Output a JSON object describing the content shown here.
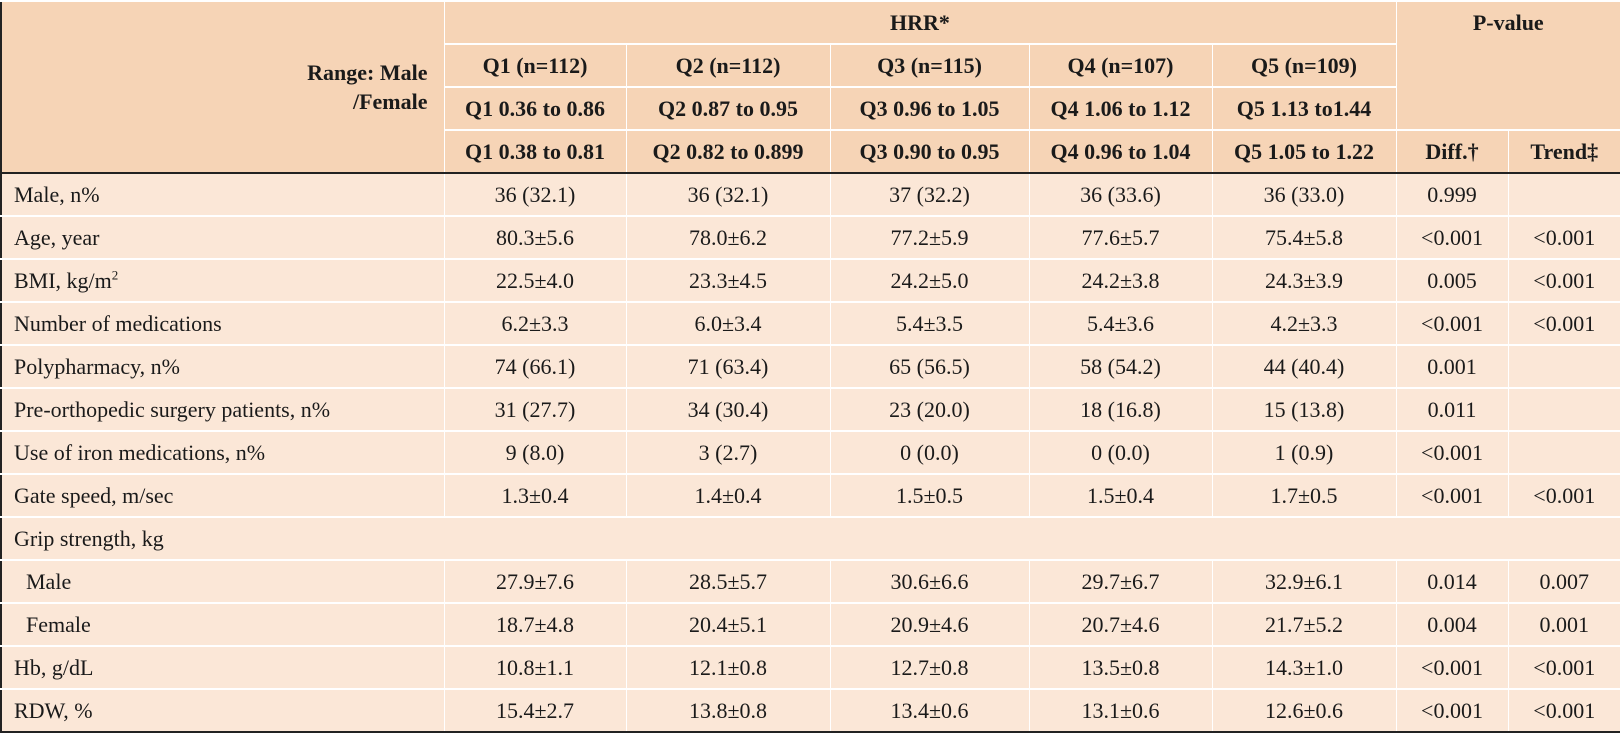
{
  "header": {
    "stub_label": "Range: Male /Female",
    "stub_line1": "Range: Male",
    "stub_line2": "/Female",
    "group_title": "HRR*",
    "pvalue_title": "P-value",
    "quintile_counts": [
      "Q1 (n=112)",
      "Q2 (n=112)",
      "Q3 (n=115)",
      "Q4 (n=107)",
      "Q5 (n=109)"
    ],
    "male_ranges": [
      "Q1 0.36 to 0.86",
      "Q2 0.87 to 0.95",
      "Q3 0.96 to 1.05",
      "Q4 1.06 to 1.12",
      "Q5 1.13 to1.44"
    ],
    "female_ranges": [
      "Q1 0.38 to 0.81",
      "Q2 0.82 to 0.899",
      "Q3 0.90 to 0.95",
      "Q4 0.96 to 1.04",
      "Q5 1.05 to 1.22"
    ],
    "diff_label": "Diff.†",
    "trend_label": "Trend‡"
  },
  "rows": [
    {
      "label": "Male, n%",
      "values": [
        "36 (32.1)",
        "36 (32.1)",
        "37 (32.2)",
        "36 (33.6)",
        "36 (33.0)"
      ],
      "diff": "0.999",
      "trend": ""
    },
    {
      "label": "Age, year",
      "values": [
        "80.3±5.6",
        "78.0±6.2",
        "77.2±5.9",
        "77.6±5.7",
        "75.4±5.8"
      ],
      "diff": "<0.001",
      "trend": "<0.001"
    },
    {
      "label": "BMI, kg/m",
      "label_sup": "2",
      "values": [
        "22.5±4.0",
        "23.3±4.5",
        "24.2±5.0",
        "24.2±3.8",
        "24.3±3.9"
      ],
      "diff": "0.005",
      "trend": "<0.001"
    },
    {
      "label": "Number of medications",
      "values": [
        "6.2±3.3",
        "6.0±3.4",
        "5.4±3.5",
        "5.4±3.6",
        "4.2±3.3"
      ],
      "diff": "<0.001",
      "trend": "<0.001"
    },
    {
      "label": "Polypharmacy, n%",
      "values": [
        "74 (66.1)",
        "71 (63.4)",
        "65 (56.5)",
        "58 (54.2)",
        "44 (40.4)"
      ],
      "diff": "0.001",
      "trend": ""
    },
    {
      "label": "Pre-orthopedic surgery patients, n%",
      "values": [
        "31 (27.7)",
        "34 (30.4)",
        "23 (20.0)",
        "18 (16.8)",
        "15 (13.8)"
      ],
      "diff": "0.011",
      "trend": ""
    },
    {
      "label": "Use of iron medications, n%",
      "values": [
        "9 (8.0)",
        "3 (2.7)",
        "0 (0.0)",
        "0 (0.0)",
        "1 (0.9)"
      ],
      "diff": "<0.001",
      "trend": ""
    },
    {
      "label": "Gate speed, m/sec",
      "values": [
        "1.3±0.4",
        "1.4±0.4",
        "1.5±0.5",
        "1.5±0.4",
        "1.7±0.5"
      ],
      "diff": "<0.001",
      "trend": "<0.001"
    },
    {
      "label": "Grip strength, kg",
      "section": true
    },
    {
      "label": "Male",
      "sub": true,
      "values": [
        "27.9±7.6",
        "28.5±5.7",
        "30.6±6.6",
        "29.7±6.7",
        "32.9±6.1"
      ],
      "diff": "0.014",
      "trend": "0.007"
    },
    {
      "label": "Female",
      "sub": true,
      "values": [
        "18.7±4.8",
        "20.4±5.1",
        "20.9±4.6",
        "20.7±4.6",
        "21.7±5.2"
      ],
      "diff": "0.004",
      "trend": "0.001"
    },
    {
      "label": "Hb, g/dL",
      "values": [
        "10.8±1.1",
        "12.1±0.8",
        "12.7±0.8",
        "13.5±0.8",
        "14.3±1.0"
      ],
      "diff": "<0.001",
      "trend": "<0.001"
    },
    {
      "label": "RDW, %",
      "values": [
        "15.4±2.7",
        "13.8±0.8",
        "13.4±0.6",
        "13.1±0.6",
        "12.6±0.6"
      ],
      "diff": "<0.001",
      "trend": "<0.001"
    }
  ],
  "colors": {
    "header_bg": "#f6d4b6",
    "body_bg": "#fbe7d7",
    "border": "#222222"
  }
}
